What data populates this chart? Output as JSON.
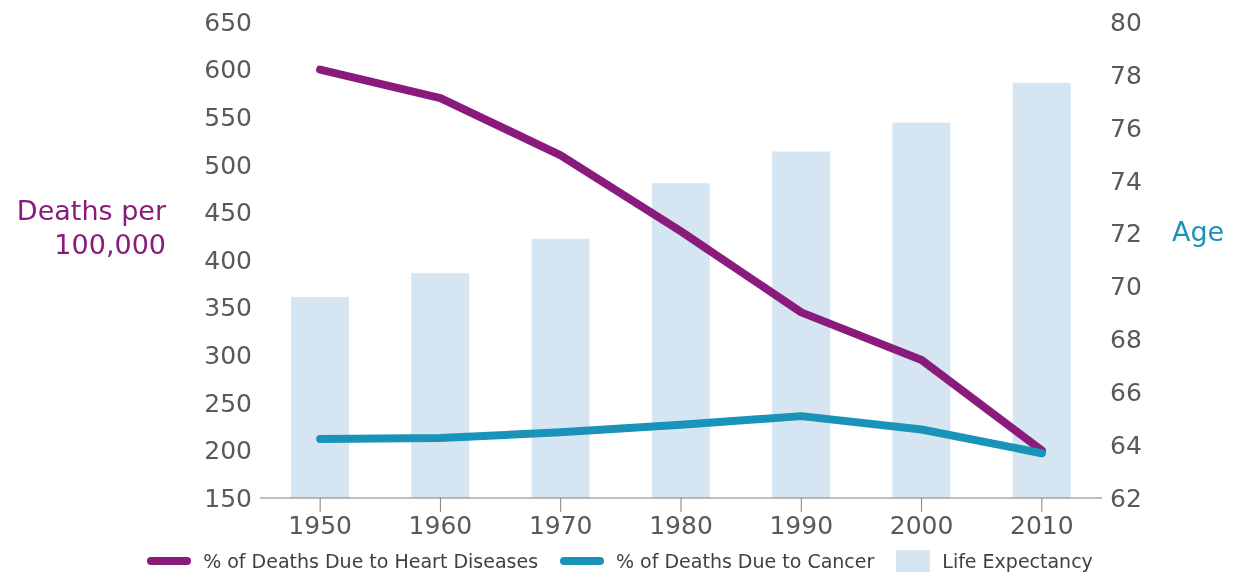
{
  "chart_data": {
    "type": "line",
    "categories": [
      "1950",
      "1960",
      "1970",
      "1980",
      "1990",
      "2000",
      "2010"
    ],
    "ylabel": "Deaths per 100,000",
    "y2label": "Age",
    "ylim": [
      150,
      650
    ],
    "yticks": [
      150,
      200,
      250,
      300,
      350,
      400,
      450,
      500,
      550,
      600,
      650
    ],
    "y2lim": [
      62,
      80
    ],
    "y2ticks": [
      62,
      64,
      66,
      68,
      70,
      72,
      74,
      76,
      78,
      80
    ],
    "series": [
      {
        "name": "% of Deaths Due to Heart Diseases",
        "color": "#8b1a7d",
        "values": [
          600,
          570,
          510,
          430,
          345,
          295,
          200
        ]
      },
      {
        "name": "% of Deaths Due to Cancer",
        "color": "#1a93b8",
        "values": [
          212,
          213,
          219,
          227,
          236,
          222,
          197
        ]
      },
      {
        "name": "Life Expectancy",
        "type": "bar",
        "axis": "y2",
        "color": "#d5e6f2",
        "values": [
          69.6,
          70.5,
          71.8,
          73.9,
          75.1,
          76.2,
          77.7
        ]
      }
    ],
    "grid": false,
    "legend": "bottom",
    "marker": "none",
    "line_style": "solid"
  }
}
